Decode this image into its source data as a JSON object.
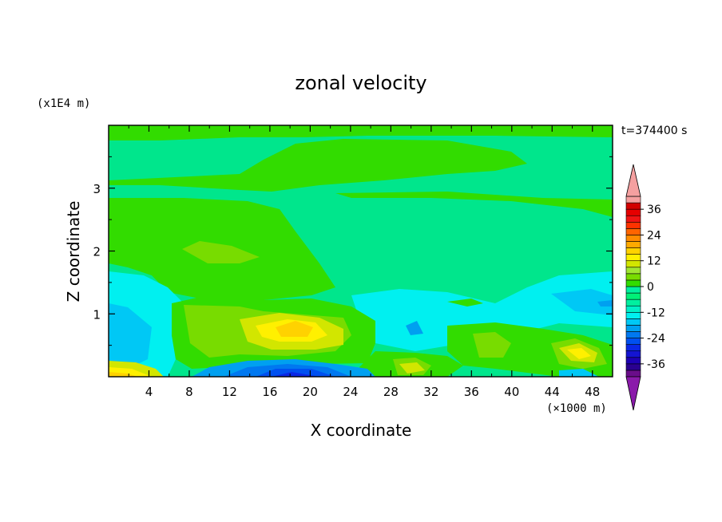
{
  "chart_data": {
    "type": "heatmap",
    "title": "zonal velocity",
    "xlabel": "X coordinate",
    "ylabel": "Z coordinate",
    "x_unit": "(×1000 m)",
    "y_unit": "(x1E4 m)",
    "time_label": "t=374400 s",
    "xlim": [
      0,
      50
    ],
    "ylim": [
      0,
      4
    ],
    "x_ticks": [
      "4",
      "8",
      "12",
      "16",
      "20",
      "24",
      "28",
      "32",
      "36",
      "40",
      "44",
      "48"
    ],
    "y_ticks": [
      "1",
      "2",
      "3"
    ],
    "colorbar": {
      "levels": [
        -42,
        -39,
        -36,
        -33,
        -30,
        -27,
        -24,
        -21,
        -18,
        -15,
        -12,
        -9,
        -6,
        -3,
        0,
        3,
        6,
        9,
        12,
        15,
        18,
        21,
        24,
        27,
        30,
        33,
        36,
        39,
        42
      ],
      "tick_labels": [
        "36",
        "24",
        "12",
        "0",
        "-12",
        "-24",
        "-36"
      ],
      "colors": [
        "#6a0d8a",
        "#2a0090",
        "#1e00b4",
        "#1414d2",
        "#0a28e6",
        "#0050f0",
        "#0078f0",
        "#00a0f0",
        "#00c8f5",
        "#00f0f0",
        "#00f0c8",
        "#00f0a0",
        "#00f078",
        "#00f0a0",
        "#32dc00",
        "#78dc00",
        "#a0e632",
        "#d2e600",
        "#fff000",
        "#ffd200",
        "#ffaa00",
        "#ff8c00",
        "#ff6400",
        "#ff3200",
        "#f01414",
        "#e60000",
        "#d20000",
        "#f5a0a0"
      ],
      "over_color": "#f5a0a0",
      "under_color": "#8a1aaa"
    },
    "grid": false,
    "legend": "colorbar-right"
  }
}
